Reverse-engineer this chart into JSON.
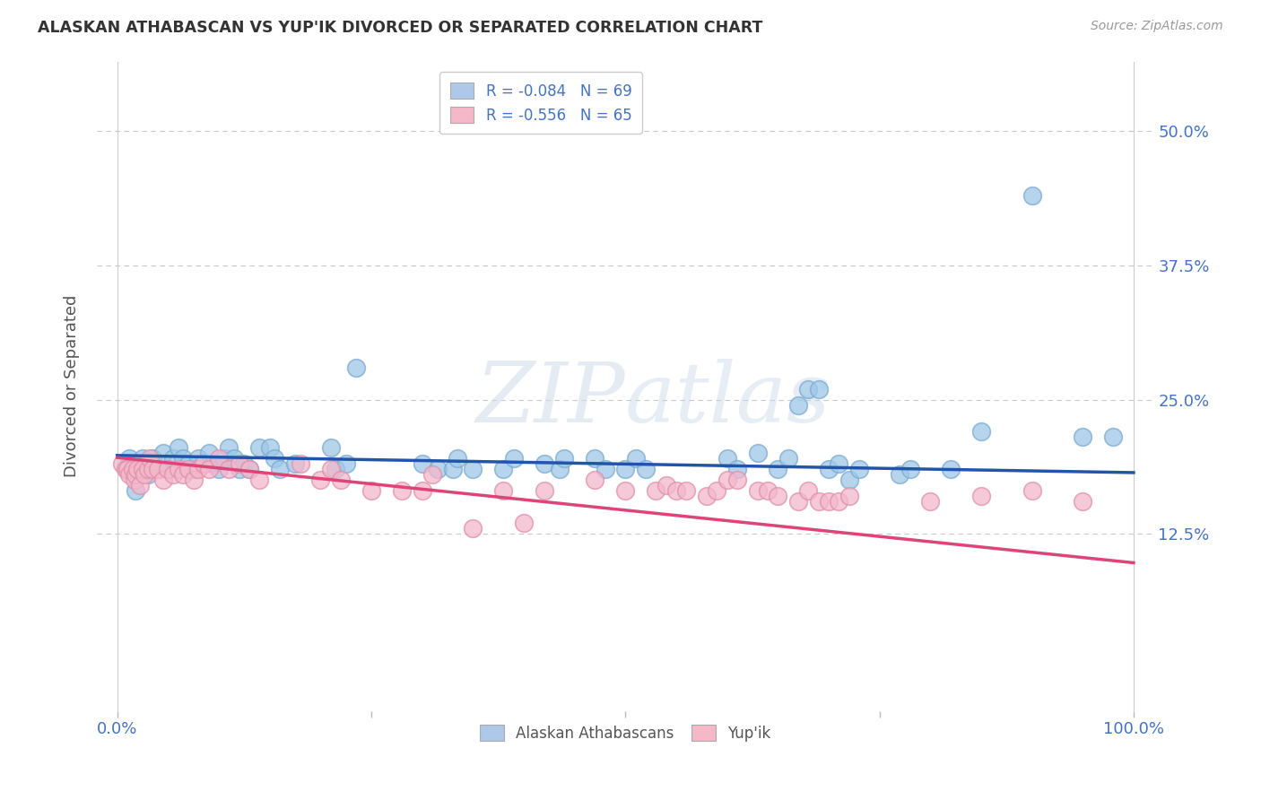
{
  "title": "ALASKAN ATHABASCAN VS YUP'IK DIVORCED OR SEPARATED CORRELATION CHART",
  "source": "Source: ZipAtlas.com",
  "ylabel": "Divorced or Separated",
  "yticks_labels": [
    "12.5%",
    "25.0%",
    "37.5%",
    "50.0%"
  ],
  "ytick_vals": [
    0.125,
    0.25,
    0.375,
    0.5
  ],
  "xlim": [
    -0.02,
    1.02
  ],
  "ylim": [
    -0.04,
    0.565
  ],
  "legend_entries": [
    {
      "label": "R = -0.084   N = 69",
      "color": "#adc8e8"
    },
    {
      "label": "R = -0.556   N = 65",
      "color": "#f4b8c8"
    }
  ],
  "legend_bottom": [
    "Alaskan Athabascans",
    "Yup'ik"
  ],
  "blue_dot_color": "#9ec8e8",
  "blue_dot_edge": "#7aaad0",
  "pink_dot_color": "#f4b8cc",
  "pink_dot_edge": "#e090a8",
  "blue_line_color": "#2255aa",
  "pink_line_color": "#dd4477",
  "watermark_color": "#d0dce8",
  "blue_scatter": [
    [
      0.012,
      0.195
    ],
    [
      0.018,
      0.165
    ],
    [
      0.02,
      0.185
    ],
    [
      0.025,
      0.195
    ],
    [
      0.028,
      0.19
    ],
    [
      0.03,
      0.18
    ],
    [
      0.035,
      0.195
    ],
    [
      0.04,
      0.185
    ],
    [
      0.045,
      0.2
    ],
    [
      0.05,
      0.185
    ],
    [
      0.055,
      0.195
    ],
    [
      0.06,
      0.205
    ],
    [
      0.065,
      0.195
    ],
    [
      0.07,
      0.19
    ],
    [
      0.075,
      0.185
    ],
    [
      0.08,
      0.195
    ],
    [
      0.085,
      0.19
    ],
    [
      0.09,
      0.2
    ],
    [
      0.095,
      0.19
    ],
    [
      0.1,
      0.185
    ],
    [
      0.105,
      0.195
    ],
    [
      0.11,
      0.205
    ],
    [
      0.115,
      0.195
    ],
    [
      0.12,
      0.185
    ],
    [
      0.125,
      0.19
    ],
    [
      0.13,
      0.185
    ],
    [
      0.14,
      0.205
    ],
    [
      0.15,
      0.205
    ],
    [
      0.155,
      0.195
    ],
    [
      0.16,
      0.185
    ],
    [
      0.175,
      0.19
    ],
    [
      0.21,
      0.205
    ],
    [
      0.215,
      0.185
    ],
    [
      0.225,
      0.19
    ],
    [
      0.235,
      0.28
    ],
    [
      0.3,
      0.19
    ],
    [
      0.315,
      0.185
    ],
    [
      0.33,
      0.185
    ],
    [
      0.335,
      0.195
    ],
    [
      0.35,
      0.185
    ],
    [
      0.38,
      0.185
    ],
    [
      0.39,
      0.195
    ],
    [
      0.42,
      0.19
    ],
    [
      0.435,
      0.185
    ],
    [
      0.44,
      0.195
    ],
    [
      0.47,
      0.195
    ],
    [
      0.48,
      0.185
    ],
    [
      0.5,
      0.185
    ],
    [
      0.51,
      0.195
    ],
    [
      0.52,
      0.185
    ],
    [
      0.6,
      0.195
    ],
    [
      0.61,
      0.185
    ],
    [
      0.63,
      0.2
    ],
    [
      0.65,
      0.185
    ],
    [
      0.66,
      0.195
    ],
    [
      0.67,
      0.245
    ],
    [
      0.68,
      0.26
    ],
    [
      0.69,
      0.26
    ],
    [
      0.7,
      0.185
    ],
    [
      0.71,
      0.19
    ],
    [
      0.72,
      0.175
    ],
    [
      0.73,
      0.185
    ],
    [
      0.77,
      0.18
    ],
    [
      0.78,
      0.185
    ],
    [
      0.82,
      0.185
    ],
    [
      0.85,
      0.22
    ],
    [
      0.9,
      0.44
    ],
    [
      0.95,
      0.215
    ],
    [
      0.98,
      0.215
    ]
  ],
  "pink_scatter": [
    [
      0.005,
      0.19
    ],
    [
      0.008,
      0.185
    ],
    [
      0.01,
      0.185
    ],
    [
      0.012,
      0.18
    ],
    [
      0.015,
      0.185
    ],
    [
      0.017,
      0.175
    ],
    [
      0.018,
      0.18
    ],
    [
      0.02,
      0.185
    ],
    [
      0.022,
      0.17
    ],
    [
      0.025,
      0.185
    ],
    [
      0.027,
      0.18
    ],
    [
      0.03,
      0.185
    ],
    [
      0.032,
      0.195
    ],
    [
      0.035,
      0.185
    ],
    [
      0.04,
      0.185
    ],
    [
      0.045,
      0.175
    ],
    [
      0.05,
      0.185
    ],
    [
      0.055,
      0.18
    ],
    [
      0.06,
      0.185
    ],
    [
      0.065,
      0.18
    ],
    [
      0.07,
      0.185
    ],
    [
      0.075,
      0.175
    ],
    [
      0.08,
      0.185
    ],
    [
      0.085,
      0.19
    ],
    [
      0.09,
      0.185
    ],
    [
      0.1,
      0.195
    ],
    [
      0.11,
      0.185
    ],
    [
      0.12,
      0.19
    ],
    [
      0.13,
      0.185
    ],
    [
      0.14,
      0.175
    ],
    [
      0.18,
      0.19
    ],
    [
      0.2,
      0.175
    ],
    [
      0.21,
      0.185
    ],
    [
      0.22,
      0.175
    ],
    [
      0.25,
      0.165
    ],
    [
      0.28,
      0.165
    ],
    [
      0.3,
      0.165
    ],
    [
      0.31,
      0.18
    ],
    [
      0.35,
      0.13
    ],
    [
      0.38,
      0.165
    ],
    [
      0.4,
      0.135
    ],
    [
      0.42,
      0.165
    ],
    [
      0.47,
      0.175
    ],
    [
      0.5,
      0.165
    ],
    [
      0.53,
      0.165
    ],
    [
      0.54,
      0.17
    ],
    [
      0.55,
      0.165
    ],
    [
      0.56,
      0.165
    ],
    [
      0.58,
      0.16
    ],
    [
      0.59,
      0.165
    ],
    [
      0.6,
      0.175
    ],
    [
      0.61,
      0.175
    ],
    [
      0.63,
      0.165
    ],
    [
      0.64,
      0.165
    ],
    [
      0.65,
      0.16
    ],
    [
      0.67,
      0.155
    ],
    [
      0.68,
      0.165
    ],
    [
      0.69,
      0.155
    ],
    [
      0.7,
      0.155
    ],
    [
      0.71,
      0.155
    ],
    [
      0.72,
      0.16
    ],
    [
      0.8,
      0.155
    ],
    [
      0.85,
      0.16
    ],
    [
      0.9,
      0.165
    ],
    [
      0.95,
      0.155
    ]
  ],
  "blue_line_x": [
    0.0,
    1.0
  ],
  "blue_line_y": [
    0.198,
    0.182
  ],
  "pink_line_x": [
    0.0,
    1.0
  ],
  "pink_line_y": [
    0.196,
    0.098
  ]
}
